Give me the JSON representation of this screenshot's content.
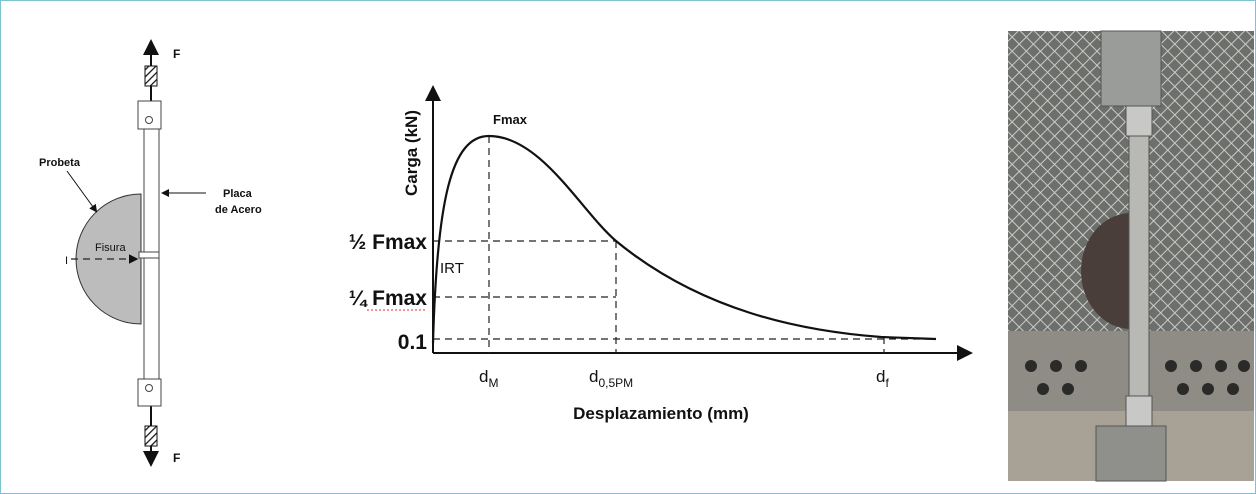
{
  "schematic": {
    "force_top": "F",
    "force_bottom": "F",
    "specimen": "Probeta",
    "plate": [
      "Placa",
      "de Acero"
    ],
    "crack": "Fisura",
    "marker": "I"
  },
  "diagram": {
    "y_axis_title": "Carga (kN)",
    "x_axis_title": "Desplazamiento (mm)",
    "peak_label": "Fmax",
    "load_levels": [
      "½ Fmax",
      "¼ Fmax",
      "0.1"
    ],
    "slope_label": "IRT",
    "displacements": [
      {
        "base": "d",
        "sub": "M"
      },
      {
        "base": "d",
        "sub": "0,5PM"
      },
      {
        "base": "d",
        "sub": "f"
      }
    ]
  }
}
